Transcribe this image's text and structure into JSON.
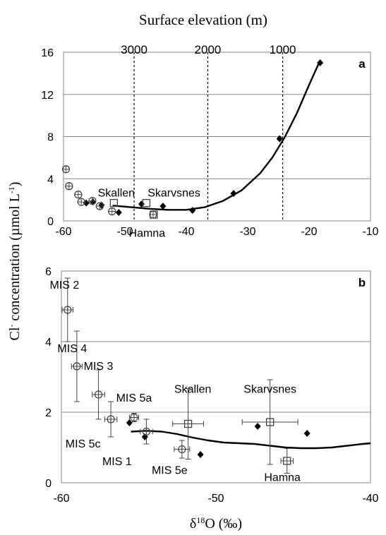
{
  "figure": {
    "top_label": "Surface elevation (m)",
    "ylabel_prefix": "Cl",
    "ylabel_sup": "-",
    "ylabel_mid": " concentration (µmol L",
    "ylabel_sup2": "-1",
    "ylabel_end": ")",
    "xlabel_pre": "δ",
    "xlabel_sup": "18",
    "xlabel_post": "O (‰)",
    "colors": {
      "frame": "#9a9a9a",
      "grid": "#8a8a8a",
      "ink": "#000000",
      "curve": "#000000",
      "plot_bg": "#ffffff"
    }
  },
  "chart_data": [
    {
      "panel_label": "a",
      "type": "scatter",
      "xlim": [
        -60,
        -10
      ],
      "ylim": [
        0,
        16
      ],
      "xticks": [
        "-60",
        "-50",
        "-40",
        "-30",
        "-20",
        "-10"
      ],
      "yticks": [
        "0",
        "4",
        "8",
        "12",
        "16"
      ],
      "gridlines_y": [
        4,
        8,
        12
      ],
      "grid": "horizontal",
      "elevation_ticks": [
        {
          "label": "3000",
          "x": -48.5
        },
        {
          "label": "2000",
          "x": -36.5
        },
        {
          "label": "1000",
          "x": -24.3
        }
      ],
      "diamonds": [
        {
          "x": -56.3,
          "y": 1.7
        },
        {
          "x": -55.2,
          "y": 1.8
        },
        {
          "x": -53.8,
          "y": 1.5
        },
        {
          "x": -51.0,
          "y": 0.8
        },
        {
          "x": -47.3,
          "y": 1.6
        },
        {
          "x": -43.8,
          "y": 1.4
        },
        {
          "x": -39.0,
          "y": 1.0
        },
        {
          "x": -32.3,
          "y": 2.6
        },
        {
          "x": -24.8,
          "y": 7.8
        },
        {
          "x": -18.2,
          "y": 15.0
        }
      ],
      "circles": [
        {
          "x": -59.6,
          "y": 4.9
        },
        {
          "x": -59.1,
          "y": 3.3
        },
        {
          "x": -57.6,
          "y": 2.5
        },
        {
          "x": -57.1,
          "y": 1.8
        },
        {
          "x": -55.3,
          "y": 1.9
        },
        {
          "x": -54.1,
          "y": 1.4
        },
        {
          "x": -52.1,
          "y": 0.9
        },
        {
          "x": -45.4,
          "y": 0.6
        }
      ],
      "squares": [
        {
          "x": -51.8,
          "y": 1.7
        },
        {
          "x": -46.5,
          "y": 1.7
        },
        {
          "x": -45.3,
          "y": 0.6
        }
      ],
      "curve": [
        [
          -52.0,
          1.45
        ],
        [
          -49,
          1.3
        ],
        [
          -46,
          1.15
        ],
        [
          -43,
          1.05
        ],
        [
          -40,
          1.05
        ],
        [
          -37,
          1.3
        ],
        [
          -34,
          1.9
        ],
        [
          -31,
          2.9
        ],
        [
          -28,
          4.5
        ],
        [
          -26,
          6.0
        ],
        [
          -24,
          7.9
        ],
        [
          -22,
          10.2
        ],
        [
          -20,
          12.9
        ],
        [
          -18.3,
          15.1
        ]
      ],
      "annotations": [
        {
          "text": "Skallen",
          "x": -51.4,
          "y": 2.3
        },
        {
          "text": "Skarvsnes",
          "x": -42.0,
          "y": 2.3
        },
        {
          "text": "Hamna",
          "x": -46.4,
          "y": -1.5
        }
      ]
    },
    {
      "panel_label": "b",
      "type": "scatter",
      "xlim": [
        -60,
        -40
      ],
      "ylim": [
        0,
        6
      ],
      "xticks": [
        "-60",
        "-50",
        "-40"
      ],
      "yticks": [
        "0",
        "2",
        "4",
        "6"
      ],
      "gridlines_y": [
        2,
        4
      ],
      "grid": "horizontal",
      "diamonds": [
        {
          "x": -55.6,
          "y": 1.7
        },
        {
          "x": -54.6,
          "y": 1.3
        },
        {
          "x": -51.0,
          "y": 0.8
        },
        {
          "x": -47.3,
          "y": 1.6
        },
        {
          "x": -44.1,
          "y": 1.4
        }
      ],
      "circles": [
        {
          "x": -59.6,
          "y": 4.9,
          "xerr": 0.35,
          "yerr": 0.9,
          "label": "MIS 2",
          "lx": -59.8,
          "ly": 5.5
        },
        {
          "x": -59.0,
          "y": 3.3,
          "xerr": 0.35,
          "yerr": 1.0,
          "label": "MIS 4",
          "lx": -59.3,
          "ly": 3.7
        },
        {
          "x": -57.6,
          "y": 2.5,
          "xerr": 0.4,
          "yerr": 0.7,
          "label": "MIS 3",
          "lx": -57.6,
          "ly": 3.2
        },
        {
          "x": -56.8,
          "y": 1.8,
          "xerr": 0.4,
          "yerr": 0.5,
          "label": "MIS 5c",
          "lx": -58.6,
          "ly": 1.0
        },
        {
          "x": -55.3,
          "y": 1.85,
          "xerr": 0.3,
          "yerr": 0.12,
          "label": "MIS 5a",
          "lx": -55.3,
          "ly": 2.3
        },
        {
          "x": -54.5,
          "y": 1.45,
          "xerr": 0.4,
          "yerr": 0.35,
          "label": "MIS 1",
          "lx": -56.4,
          "ly": 0.5
        },
        {
          "x": -52.2,
          "y": 0.95,
          "xerr": 0.5,
          "yerr": 0.25,
          "label": "MIS 5e",
          "lx": -53.0,
          "ly": 0.25
        }
      ],
      "squares": [
        {
          "x": -51.8,
          "y": 1.67,
          "xerr": 1.0,
          "yerr": 1.0,
          "label": "Skallen",
          "lx": -51.5,
          "ly": 2.55
        },
        {
          "x": -46.5,
          "y": 1.72,
          "xerr": 1.8,
          "yerr": 1.2,
          "label": "Skarvsnes",
          "lx": -46.5,
          "ly": 2.55
        },
        {
          "x": -45.4,
          "y": 0.62,
          "xerr": 0.4,
          "yerr": 0.35,
          "label": "Hamna",
          "lx": -45.7,
          "ly": 0.05
        }
      ],
      "curve": [
        [
          -55.5,
          1.45
        ],
        [
          -54.5,
          1.47
        ],
        [
          -53.5,
          1.45
        ],
        [
          -52.5,
          1.38
        ],
        [
          -51.5,
          1.28
        ],
        [
          -50.5,
          1.2
        ],
        [
          -49.5,
          1.14
        ],
        [
          -48.5,
          1.12
        ],
        [
          -47.5,
          1.1
        ],
        [
          -46.5,
          1.05
        ],
        [
          -45.5,
          1.0
        ],
        [
          -44.5,
          0.98
        ],
        [
          -43.5,
          0.98
        ],
        [
          -42.5,
          1.0
        ],
        [
          -41.5,
          1.05
        ],
        [
          -40.5,
          1.1
        ],
        [
          -40.0,
          1.12
        ]
      ]
    }
  ]
}
